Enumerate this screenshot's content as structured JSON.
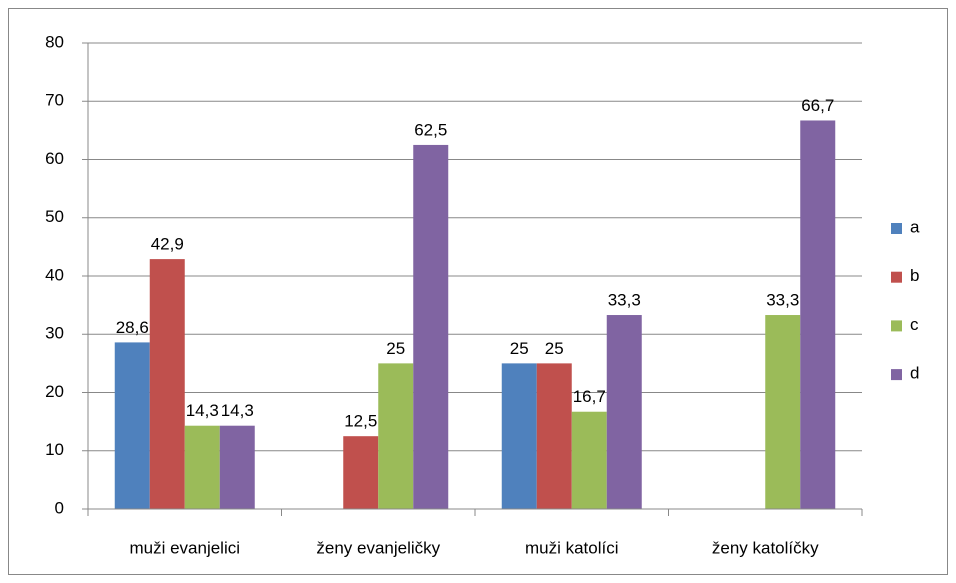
{
  "chart_data": {
    "type": "bar",
    "categories": [
      "muži evanjelici",
      "ženy evanjeličky",
      "muži katolíci",
      "ženy katolíčky"
    ],
    "series": [
      {
        "name": "a",
        "color": "#4f81bd",
        "values": [
          28.6,
          0,
          25,
          0
        ],
        "value_labels": [
          "28,6",
          null,
          "25",
          null
        ]
      },
      {
        "name": "b",
        "color": "#c0504d",
        "values": [
          42.9,
          12.5,
          25,
          0
        ],
        "value_labels": [
          "42,9",
          "12,5",
          "25",
          null
        ]
      },
      {
        "name": "c",
        "color": "#9bbb59",
        "values": [
          14.3,
          25,
          16.7,
          33.3
        ],
        "value_labels": [
          "14,3",
          "25",
          "16,7",
          "33,3"
        ]
      },
      {
        "name": "d",
        "color": "#8064a2",
        "values": [
          14.3,
          62.5,
          33.3,
          66.7
        ],
        "value_labels": [
          "14,3",
          "62,5",
          "33,3",
          "66,7"
        ]
      }
    ],
    "ylim": [
      0,
      80
    ],
    "yticks": [
      0,
      10,
      20,
      30,
      40,
      50,
      60,
      70,
      80
    ],
    "grid": true,
    "legend": "right"
  }
}
